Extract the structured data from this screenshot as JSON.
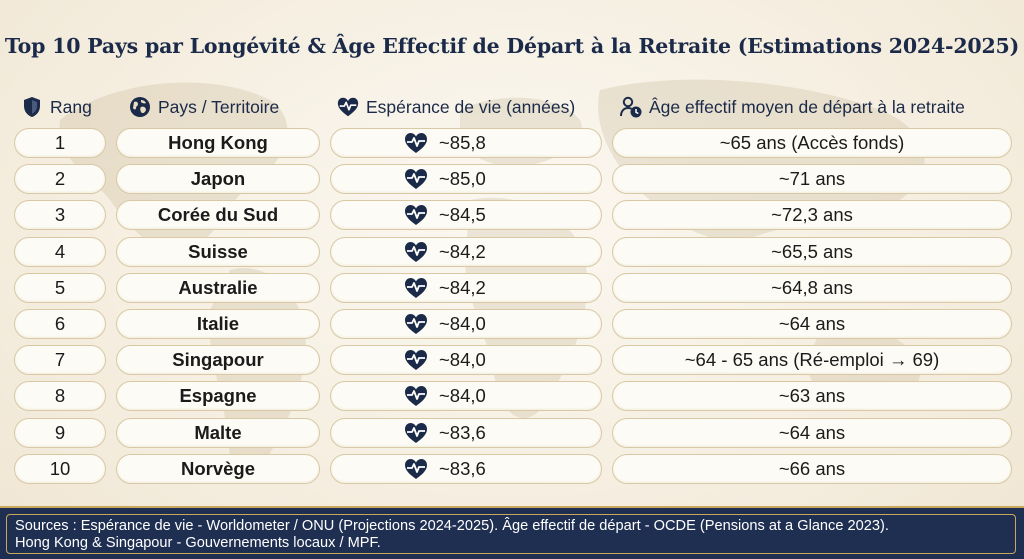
{
  "title": "Top 10 Pays par Longévité & Âge Effectif de Départ à la Retraite (Estimations 2024-2025)",
  "headers": {
    "rank": "Rang",
    "country": "Pays / Territoire",
    "life_expectancy": "Espérance de vie (années)",
    "retirement_age": "Âge effectif moyen de départ à la retraite"
  },
  "icons": {
    "rank": "shield-icon",
    "country": "globe-icon",
    "life_expectancy": "heartbeat-icon",
    "retirement_age": "person-clock-icon",
    "row": "heartbeat-icon"
  },
  "colors": {
    "navy": "#1b2a48",
    "gold_border": "#d8c9a4",
    "footer_bg": "#1f2f52"
  },
  "rows": [
    {
      "rank": "1",
      "country": "Hong Kong",
      "life_expectancy": "~85,8",
      "retirement_age": "~65 ans (Accès fonds)"
    },
    {
      "rank": "2",
      "country": "Japon",
      "life_expectancy": "~85,0",
      "retirement_age": "~71 ans"
    },
    {
      "rank": "3",
      "country": "Corée du Sud",
      "life_expectancy": "~84,5",
      "retirement_age": "~72,3 ans"
    },
    {
      "rank": "4",
      "country": "Suisse",
      "life_expectancy": "~84,2",
      "retirement_age": "~65,5 ans"
    },
    {
      "rank": "5",
      "country": "Australie",
      "life_expectancy": "~84,2",
      "retirement_age": "~64,8 ans"
    },
    {
      "rank": "6",
      "country": "Italie",
      "life_expectancy": "~84,0",
      "retirement_age": "~64 ans"
    },
    {
      "rank": "7",
      "country": "Singapour",
      "life_expectancy": "~84,0",
      "retirement_age": "~64 - 65 ans (Ré-emploi → 69)"
    },
    {
      "rank": "8",
      "country": "Espagne",
      "life_expectancy": "~84,0",
      "retirement_age": "~63 ans"
    },
    {
      "rank": "9",
      "country": "Malte",
      "life_expectancy": "~83,6",
      "retirement_age": "~64 ans"
    },
    {
      "rank": "10",
      "country": "Norvège",
      "life_expectancy": "~83,6",
      "retirement_age": "~66 ans"
    }
  ],
  "footer": {
    "line1": "Sources : Espérance de vie - Worldometer / ONU (Projections 2024-2025). Âge effectif de départ - OCDE (Pensions at a Glance 2023).",
    "line2": "Hong Kong & Singapour - Gouvernements locaux / MPF."
  }
}
